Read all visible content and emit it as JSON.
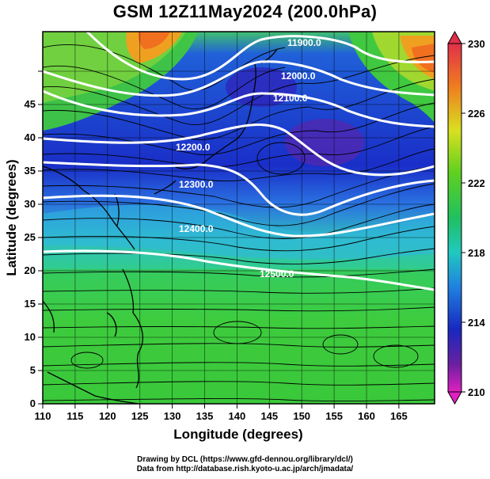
{
  "title": "GSM 12Z11May2024 (200.0hPa)",
  "map_data": {
    "x_axis": {
      "label": "Longitude (degrees)",
      "ticks": [
        "110",
        "115",
        "120",
        "125",
        "130",
        "135",
        "140",
        "145",
        "150",
        "155",
        "160",
        "165"
      ]
    },
    "y_axis": {
      "label": "Latitude  (degrees)",
      "ticks": [
        "0",
        "5",
        "10",
        "15",
        "20",
        "25",
        "30",
        "35",
        "40",
        "45"
      ]
    },
    "colorbar": {
      "ticks": [
        "230",
        "226",
        "222",
        "218",
        "214",
        "210"
      ],
      "colors": [
        "#e0204a",
        "#f07a20",
        "#f5c020",
        "#b0e020",
        "#20c040",
        "#20d0c0",
        "#2090e0",
        "#1830d0",
        "#6020a0",
        "#e020c0"
      ]
    },
    "contours": [
      {
        "label": "11900.0"
      },
      {
        "label": "12000.0"
      },
      {
        "label": "12100.0"
      },
      {
        "label": "12200.0"
      },
      {
        "label": "12300.0"
      },
      {
        "label": "12400.0"
      },
      {
        "label": "12500.0"
      }
    ]
  },
  "credits": {
    "line1": "Drawing by DCL (https://www.gfd-dennou.org/library/dcl/)",
    "line2": "Data from http://database.rish.kyoto-u.ac.jp/arch/jmadata/"
  }
}
